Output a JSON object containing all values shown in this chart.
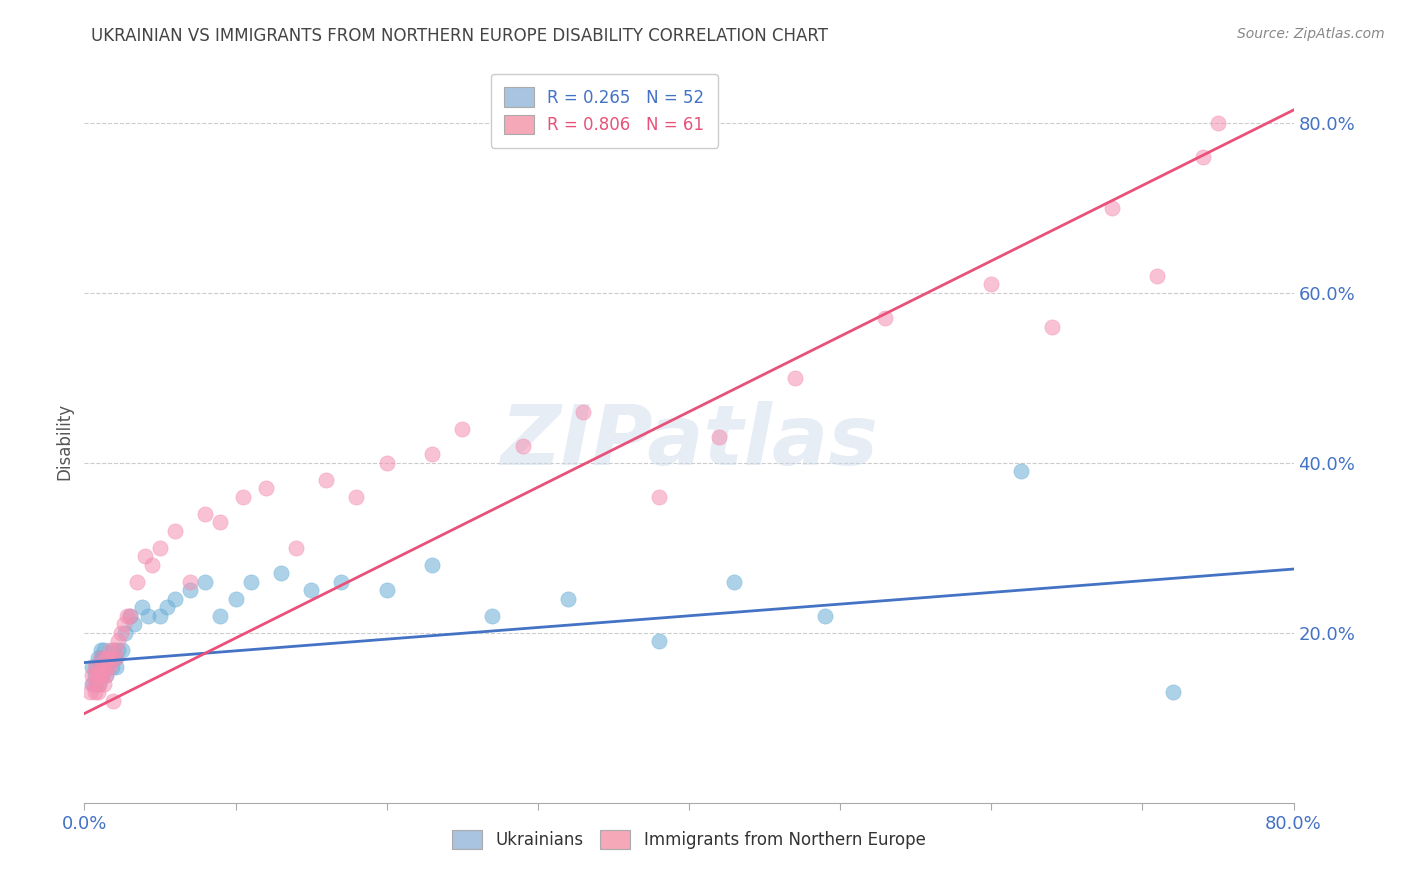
{
  "title": "UKRAINIAN VS IMMIGRANTS FROM NORTHERN EUROPE DISABILITY CORRELATION CHART",
  "source_text": "Source: ZipAtlas.com",
  "ylabel": "Disability",
  "watermark": "ZIPatlas",
  "xlim": [
    0.0,
    0.8
  ],
  "ylim": [
    0.0,
    0.85
  ],
  "xticks": [
    0.0,
    0.1,
    0.2,
    0.3,
    0.4,
    0.5,
    0.6,
    0.7,
    0.8
  ],
  "xticklabels": [
    "0.0%",
    "",
    "",
    "",
    "",
    "",
    "",
    "",
    "80.0%"
  ],
  "ytick_positions_right": [
    0.2,
    0.4,
    0.6,
    0.8
  ],
  "ytick_labels_right": [
    "20.0%",
    "40.0%",
    "60.0%",
    "80.0%"
  ],
  "legend_blue_label": "R = 0.265   N = 52",
  "legend_pink_label": "R = 0.806   N = 61",
  "legend_blue_color": "#a8c4e0",
  "legend_pink_color": "#f4a8b8",
  "scatter_blue_color": "#6aaed6",
  "scatter_pink_color": "#f48fb1",
  "line_blue_color": "#4472c4",
  "line_pink_color": "#e8527a",
  "background_color": "#ffffff",
  "grid_color": "#cccccc",
  "title_color": "#444444",
  "axis_label_color": "#555555",
  "tick_color": "#4472c4",
  "blue_scatter_x": [
    0.005,
    0.005,
    0.007,
    0.008,
    0.008,
    0.009,
    0.01,
    0.01,
    0.01,
    0.011,
    0.011,
    0.012,
    0.012,
    0.013,
    0.013,
    0.014,
    0.014,
    0.015,
    0.015,
    0.016,
    0.017,
    0.018,
    0.019,
    0.02,
    0.021,
    0.022,
    0.025,
    0.027,
    0.03,
    0.033,
    0.038,
    0.042,
    0.05,
    0.055,
    0.06,
    0.07,
    0.08,
    0.09,
    0.1,
    0.11,
    0.13,
    0.15,
    0.17,
    0.2,
    0.23,
    0.27,
    0.32,
    0.38,
    0.43,
    0.49,
    0.62,
    0.72
  ],
  "blue_scatter_y": [
    0.14,
    0.16,
    0.15,
    0.14,
    0.16,
    0.17,
    0.16,
    0.14,
    0.15,
    0.17,
    0.18,
    0.15,
    0.17,
    0.16,
    0.18,
    0.15,
    0.16,
    0.16,
    0.17,
    0.17,
    0.17,
    0.16,
    0.18,
    0.17,
    0.16,
    0.18,
    0.18,
    0.2,
    0.22,
    0.21,
    0.23,
    0.22,
    0.22,
    0.23,
    0.24,
    0.25,
    0.26,
    0.22,
    0.24,
    0.26,
    0.27,
    0.25,
    0.26,
    0.25,
    0.28,
    0.22,
    0.24,
    0.19,
    0.26,
    0.22,
    0.39,
    0.13
  ],
  "pink_scatter_x": [
    0.004,
    0.005,
    0.006,
    0.007,
    0.007,
    0.008,
    0.008,
    0.009,
    0.009,
    0.01,
    0.01,
    0.01,
    0.011,
    0.011,
    0.012,
    0.012,
    0.013,
    0.013,
    0.014,
    0.014,
    0.015,
    0.015,
    0.016,
    0.017,
    0.018,
    0.019,
    0.02,
    0.021,
    0.022,
    0.024,
    0.026,
    0.028,
    0.03,
    0.035,
    0.04,
    0.045,
    0.05,
    0.06,
    0.07,
    0.08,
    0.09,
    0.105,
    0.12,
    0.14,
    0.16,
    0.18,
    0.2,
    0.23,
    0.25,
    0.29,
    0.33,
    0.38,
    0.42,
    0.47,
    0.53,
    0.6,
    0.64,
    0.68,
    0.71,
    0.74,
    0.75
  ],
  "pink_scatter_y": [
    0.13,
    0.15,
    0.14,
    0.13,
    0.16,
    0.14,
    0.15,
    0.13,
    0.15,
    0.14,
    0.15,
    0.16,
    0.15,
    0.17,
    0.15,
    0.16,
    0.14,
    0.16,
    0.15,
    0.17,
    0.16,
    0.17,
    0.16,
    0.18,
    0.17,
    0.12,
    0.18,
    0.17,
    0.19,
    0.2,
    0.21,
    0.22,
    0.22,
    0.26,
    0.29,
    0.28,
    0.3,
    0.32,
    0.26,
    0.34,
    0.33,
    0.36,
    0.37,
    0.3,
    0.38,
    0.36,
    0.4,
    0.41,
    0.44,
    0.42,
    0.46,
    0.36,
    0.43,
    0.5,
    0.57,
    0.61,
    0.56,
    0.7,
    0.62,
    0.76,
    0.8
  ],
  "blue_line_x": [
    0.0,
    0.8
  ],
  "blue_line_y": [
    0.165,
    0.275
  ],
  "pink_line_x": [
    0.0,
    0.8
  ],
  "pink_line_y": [
    0.105,
    0.815
  ]
}
